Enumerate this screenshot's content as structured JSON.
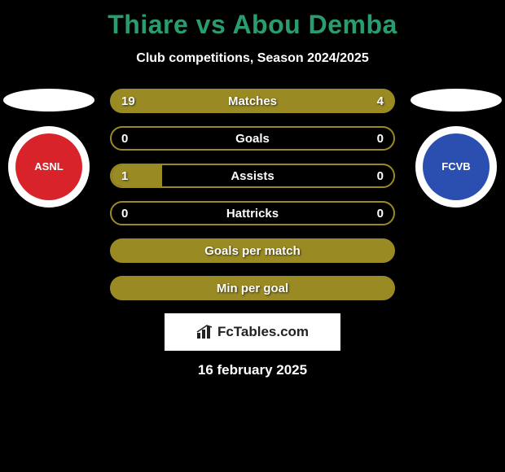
{
  "title": {
    "text": "Thiare vs Abou Demba",
    "color": "#2a9d6f"
  },
  "subtitle": "Club competitions, Season 2024/2025",
  "leftBadge": {
    "bg": "#ffffff",
    "innerBg": "#d8232a",
    "innerText": "ASNL",
    "innerTextColor": "#ffffff"
  },
  "rightBadge": {
    "bg": "#ffffff",
    "innerBg": "#2a4fb0",
    "innerText": "FCVB",
    "innerTextColor": "#ffffff"
  },
  "stats": {
    "barBorderColor": "#9a8a24",
    "barFillColor": "#9a8a24",
    "barBgColor": "rgba(0,0,0,0)",
    "rows": [
      {
        "label": "Matches",
        "left": "19",
        "right": "4",
        "leftPct": 78,
        "rightPct": 22,
        "full": true
      },
      {
        "label": "Goals",
        "left": "0",
        "right": "0",
        "leftPct": 0,
        "rightPct": 0,
        "full": false
      },
      {
        "label": "Assists",
        "left": "1",
        "right": "0",
        "leftPct": 18,
        "rightPct": 0,
        "full": false
      },
      {
        "label": "Hattricks",
        "left": "0",
        "right": "0",
        "leftPct": 0,
        "rightPct": 0,
        "full": false
      },
      {
        "label": "Goals per match",
        "left": "",
        "right": "",
        "leftPct": 0,
        "rightPct": 0,
        "full": true
      },
      {
        "label": "Min per goal",
        "left": "",
        "right": "",
        "leftPct": 0,
        "rightPct": 0,
        "full": true
      }
    ]
  },
  "branding": "FcTables.com",
  "date": "16 february 2025"
}
